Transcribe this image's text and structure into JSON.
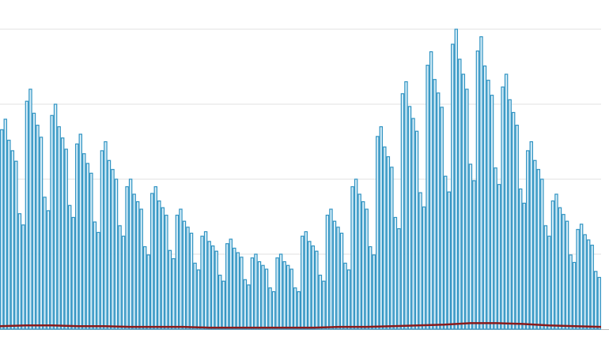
{
  "chart_data": {
    "type": "bar",
    "ylim": [
      0,
      4.39
    ],
    "yticks": [
      1,
      2,
      3,
      4
    ],
    "grid": true,
    "series": [
      {
        "color": "#2f93c2",
        "values": [
          2.66,
          2.8,
          2.52,
          2.38,
          2.24,
          1.54,
          1.39,
          3.04,
          3.2,
          2.88,
          2.72,
          2.56,
          1.76,
          1.58,
          2.85,
          3.0,
          2.7,
          2.55,
          2.4,
          1.65,
          1.49,
          2.47,
          2.6,
          2.34,
          2.21,
          2.08,
          1.43,
          1.29,
          2.38,
          2.5,
          2.25,
          2.13,
          2.0,
          1.38,
          1.24,
          1.9,
          2.0,
          1.8,
          1.7,
          1.6,
          1.1,
          0.99,
          1.81,
          1.9,
          1.71,
          1.62,
          1.52,
          1.05,
          0.94,
          1.52,
          1.6,
          1.44,
          1.36,
          1.28,
          0.88,
          0.79,
          1.24,
          1.3,
          1.17,
          1.11,
          1.04,
          0.72,
          0.64,
          1.14,
          1.2,
          1.08,
          1.02,
          0.96,
          0.66,
          0.59,
          0.95,
          1.0,
          0.9,
          0.85,
          0.8,
          0.55,
          0.5,
          0.95,
          1.0,
          0.9,
          0.85,
          0.8,
          0.55,
          0.5,
          1.24,
          1.3,
          1.17,
          1.11,
          1.04,
          0.72,
          0.64,
          1.52,
          1.6,
          1.44,
          1.36,
          1.28,
          0.88,
          0.79,
          1.9,
          2.0,
          1.8,
          1.7,
          1.6,
          1.1,
          0.99,
          2.57,
          2.7,
          2.43,
          2.3,
          2.16,
          1.49,
          1.34,
          3.14,
          3.3,
          2.97,
          2.81,
          2.64,
          1.82,
          1.63,
          3.52,
          3.7,
          3.33,
          3.15,
          2.96,
          2.04,
          1.83,
          3.8,
          4.0,
          3.6,
          3.4,
          3.2,
          2.2,
          1.98,
          3.71,
          3.9,
          3.51,
          3.32,
          3.12,
          2.15,
          1.93,
          3.23,
          3.4,
          3.06,
          2.89,
          2.72,
          1.87,
          1.68,
          2.38,
          2.5,
          2.25,
          2.13,
          2.0,
          1.38,
          1.24,
          1.71,
          1.8,
          1.62,
          1.53,
          1.44,
          0.99,
          0.89,
          1.33,
          1.4,
          1.26,
          1.19,
          1.12,
          0.77,
          0.69
        ]
      },
      {
        "type": "line",
        "color": "#8b1a1a",
        "values": [
          0.04,
          0.05,
          0.05,
          0.04,
          0.04,
          0.03,
          0.03,
          0.03,
          0.02,
          0.02,
          0.02,
          0.02,
          0.02,
          0.03,
          0.03,
          0.04,
          0.05,
          0.06,
          0.08,
          0.08,
          0.07,
          0.05,
          0.04,
          0.03
        ]
      }
    ]
  }
}
